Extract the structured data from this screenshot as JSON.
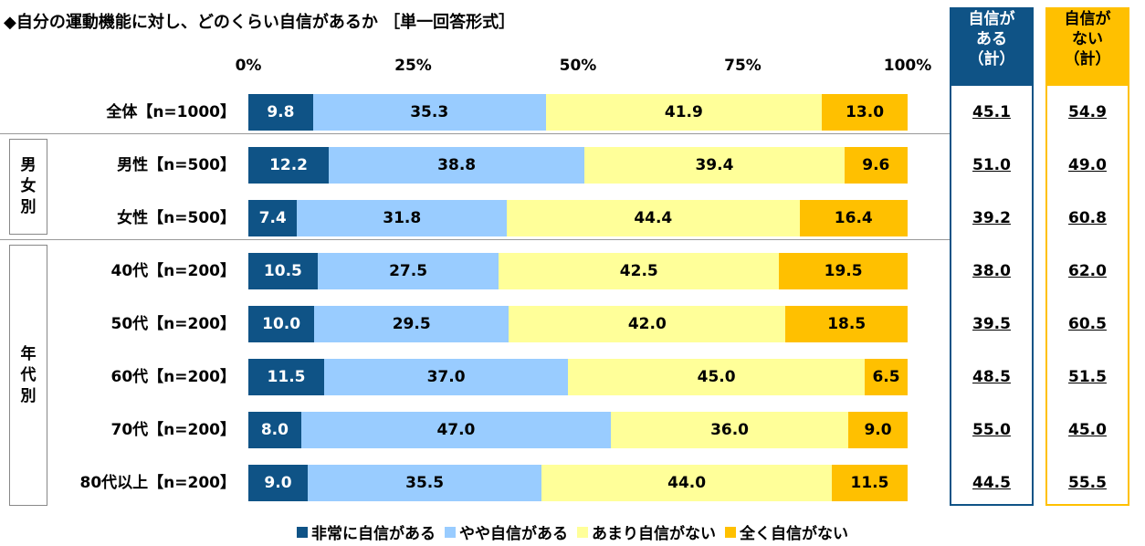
{
  "title": "◆自分の運動機能に対し、どのくらい自信があるか ［単一回答形式］",
  "colors": {
    "very_confident": "#0f5386",
    "somewhat_confident": "#99ccff",
    "not_very_confident": "#ffff99",
    "not_at_all": "#ffc000",
    "summary_confident_border": "#0f5386",
    "summary_not_confident_border": "#ffc000"
  },
  "summary_headers": {
    "confident": [
      "自信が",
      "ある",
      "（計）"
    ],
    "not_confident": [
      "自信が",
      "ない",
      "（計）"
    ]
  },
  "groups": [
    {
      "label": [
        "男",
        "女",
        "別"
      ]
    },
    {
      "label": [
        "年",
        "代",
        "別"
      ]
    }
  ],
  "chart_data": {
    "type": "bar",
    "orientation": "horizontal-stacked-100",
    "title": "◆自分の運動機能に対し、どのくらい自信があるか ［単一回答形式］",
    "xlim": [
      0,
      100
    ],
    "ticks": [
      "0%",
      "25%",
      "50%",
      "75%",
      "100%"
    ],
    "tick_values": [
      0,
      25,
      50,
      75,
      100
    ],
    "legend_position": "bottom",
    "categories": [
      "全体【n=1000】",
      "男性【n=500】",
      "女性【n=500】",
      "40代【n=200】",
      "50代【n=200】",
      "60代【n=200】",
      "70代【n=200】",
      "80代以上【n=200】"
    ],
    "series": [
      {
        "name": "非常に自信がある",
        "values": [
          9.8,
          12.2,
          7.4,
          10.5,
          10.0,
          11.5,
          8.0,
          9.0
        ],
        "labels": [
          "9.8",
          "12.2",
          "7.4",
          "10.5",
          "10.0",
          "11.5",
          "8.0",
          "9.0"
        ]
      },
      {
        "name": "やや自信がある",
        "values": [
          35.3,
          38.8,
          31.8,
          27.5,
          29.5,
          37.0,
          47.0,
          35.5
        ],
        "labels": [
          "35.3",
          "38.8",
          "31.8",
          "27.5",
          "29.5",
          "37.0",
          "47.0",
          "35.5"
        ]
      },
      {
        "name": "あまり自信がない",
        "values": [
          41.9,
          39.4,
          44.4,
          42.5,
          42.0,
          45.0,
          36.0,
          44.0
        ],
        "labels": [
          "41.9",
          "39.4",
          "44.4",
          "42.5",
          "42.0",
          "45.0",
          "36.0",
          "44.0"
        ]
      },
      {
        "name": "全く自信がない",
        "values": [
          13.0,
          9.6,
          16.4,
          19.5,
          18.5,
          6.5,
          9.0,
          11.5
        ],
        "labels": [
          "13.0",
          "9.6",
          "16.4",
          "19.5",
          "18.5",
          "6.5",
          "9.0",
          "11.5"
        ]
      }
    ],
    "summary": {
      "confident_total": [
        "45.1",
        "51.0",
        "39.2",
        "38.0",
        "39.5",
        "48.5",
        "55.0",
        "44.5"
      ],
      "not_confident_total": [
        "54.9",
        "49.0",
        "60.8",
        "62.0",
        "60.5",
        "51.5",
        "45.0",
        "55.5"
      ]
    }
  }
}
